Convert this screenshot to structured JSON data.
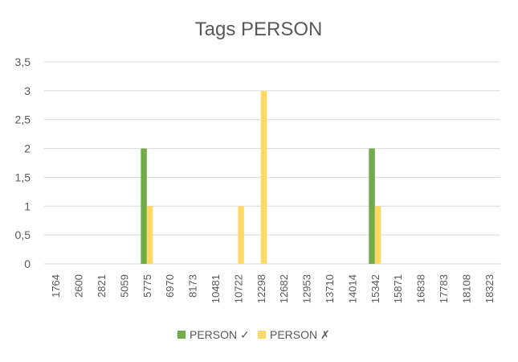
{
  "chart_data": {
    "type": "bar",
    "title": "Tags PERSON",
    "xlabel": "",
    "ylabel": "",
    "categories": [
      "1764",
      "2600",
      "2821",
      "5059",
      "5775",
      "6970",
      "8173",
      "10481",
      "10722",
      "12298",
      "12682",
      "12953",
      "13710",
      "14014",
      "15342",
      "15871",
      "16838",
      "17783",
      "18108",
      "18323"
    ],
    "y_ticks": [
      "0",
      "0,5",
      "1",
      "1,5",
      "2",
      "2,5",
      "3",
      "3,5"
    ],
    "ylim": [
      0,
      3.5
    ],
    "grid": true,
    "legend_position": "bottom",
    "series": [
      {
        "name": "PERSON ✓",
        "color": "#70ad47",
        "values": [
          0,
          0,
          0,
          0,
          2,
          0,
          0,
          0,
          0,
          0,
          0,
          0,
          0,
          0,
          2,
          0,
          0,
          0,
          0,
          0
        ]
      },
      {
        "name": "PERSON ✗",
        "color": "#ffd966",
        "values": [
          0,
          0,
          0,
          0,
          1,
          0,
          0,
          0,
          1,
          3,
          0,
          0,
          0,
          0,
          1,
          0,
          0,
          0,
          0,
          0
        ]
      }
    ]
  }
}
